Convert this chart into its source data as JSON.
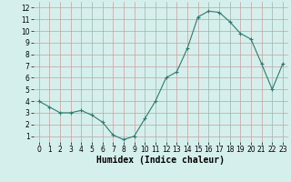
{
  "x": [
    0,
    1,
    2,
    3,
    4,
    5,
    6,
    7,
    8,
    9,
    10,
    11,
    12,
    13,
    14,
    15,
    16,
    17,
    18,
    19,
    20,
    21,
    22,
    23
  ],
  "y": [
    4.0,
    3.5,
    3.0,
    3.0,
    3.2,
    2.8,
    2.2,
    1.1,
    0.7,
    1.0,
    2.5,
    4.0,
    6.0,
    6.5,
    8.5,
    11.2,
    11.7,
    11.6,
    10.8,
    9.8,
    9.3,
    7.2,
    5.0,
    7.2
  ],
  "xlabel": "Humidex (Indice chaleur)",
  "xlim": [
    -0.5,
    23.5
  ],
  "ylim": [
    0.5,
    12.5
  ],
  "yticks": [
    1,
    2,
    3,
    4,
    5,
    6,
    7,
    8,
    9,
    10,
    11,
    12
  ],
  "xticks": [
    0,
    1,
    2,
    3,
    4,
    5,
    6,
    7,
    8,
    9,
    10,
    11,
    12,
    13,
    14,
    15,
    16,
    17,
    18,
    19,
    20,
    21,
    22,
    23
  ],
  "line_color": "#2d7b6e",
  "marker": "+",
  "bg_color": "#d5efed",
  "grid_color": "#c4a0a0",
  "label_fontsize": 7,
  "tick_fontsize": 5.5
}
